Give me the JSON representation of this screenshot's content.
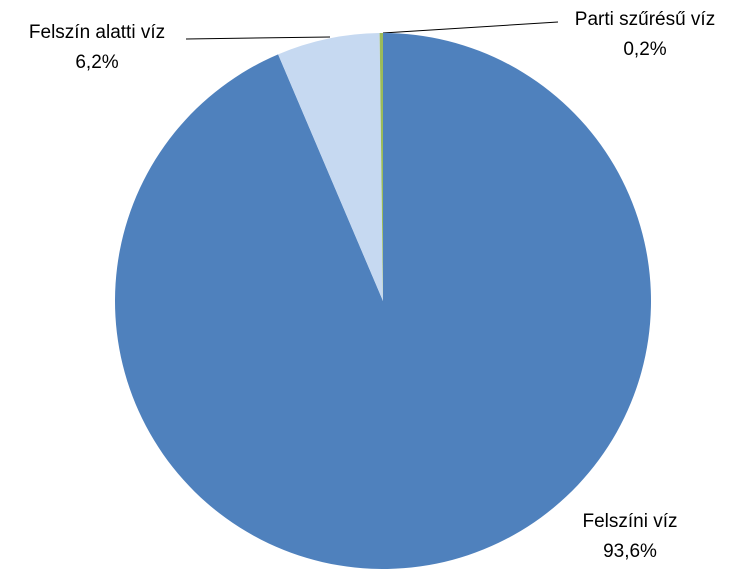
{
  "chart_data": {
    "type": "pie",
    "categories": [
      "Felszíni víz",
      "Felszín alatti víz",
      "Parti szűrésű víz"
    ],
    "values": [
      93.6,
      6.2,
      0.2
    ],
    "value_labels": [
      "93,6%",
      "6,2%",
      "0,2%"
    ],
    "colors": [
      "#4f81bd",
      "#c6d9f1",
      "#9bbb59"
    ]
  }
}
